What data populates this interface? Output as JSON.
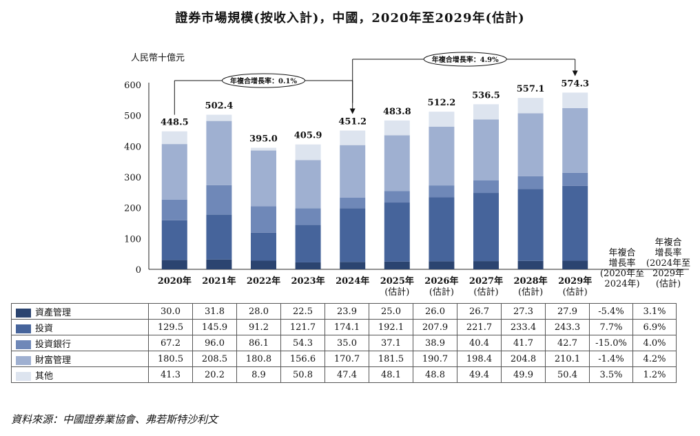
{
  "title": "證券市場規模(按收入計)，中國，2020年至2029年(估計)",
  "source": "資料來源：中國證券業協會、弗若斯特沙利文",
  "chart_data": {
    "type": "bar",
    "stacked": true,
    "unit_label": "人民幣十億元",
    "ylim": [
      0,
      600
    ],
    "yticks": [
      0,
      100,
      200,
      300,
      400,
      500,
      600
    ],
    "categories": [
      {
        "line1": "2020年",
        "line2": ""
      },
      {
        "line1": "2021年",
        "line2": ""
      },
      {
        "line1": "2022年",
        "line2": ""
      },
      {
        "line1": "2023年",
        "line2": ""
      },
      {
        "line1": "2024年",
        "line2": ""
      },
      {
        "line1": "2025年",
        "line2": "(估計)"
      },
      {
        "line1": "2026年",
        "line2": "(估計)"
      },
      {
        "line1": "2027年",
        "line2": "(估計)"
      },
      {
        "line1": "2028年",
        "line2": "(估計)"
      },
      {
        "line1": "2029年",
        "line2": "(估計)"
      }
    ],
    "totals": [
      "448.5",
      "502.4",
      "395.0",
      "405.9",
      "451.2",
      "483.8",
      "512.2",
      "536.5",
      "557.1",
      "574.3"
    ],
    "series": [
      {
        "name": "資產管理",
        "color": "#2b4470",
        "values": [
          30.0,
          31.8,
          28.0,
          22.5,
          23.9,
          25.0,
          26.0,
          26.7,
          27.3,
          27.9
        ],
        "cagr1": "-5.4%",
        "cagr2": "3.1%"
      },
      {
        "name": "投資",
        "color": "#46649b",
        "values": [
          129.5,
          145.9,
          91.2,
          121.7,
          174.1,
          192.1,
          207.9,
          221.7,
          233.4,
          243.3
        ],
        "cagr1": "7.7%",
        "cagr2": "6.9%"
      },
      {
        "name": "投資銀行",
        "color": "#6f88b8",
        "values": [
          67.2,
          96.0,
          86.1,
          54.3,
          35.0,
          37.1,
          38.9,
          40.4,
          41.7,
          42.7
        ],
        "cagr1": "-15.0%",
        "cagr2": "4.0%"
      },
      {
        "name": "財富管理",
        "color": "#9fb0d1",
        "values": [
          180.5,
          208.5,
          180.8,
          156.6,
          170.7,
          181.5,
          190.7,
          198.4,
          204.8,
          210.1
        ],
        "cagr1": "-1.4%",
        "cagr2": "4.2%"
      },
      {
        "name": "其他",
        "color": "#dde4ef",
        "values": [
          41.3,
          20.2,
          8.9,
          50.8,
          47.4,
          48.1,
          48.8,
          49.4,
          49.9,
          50.4
        ],
        "cagr1": "3.5%",
        "cagr2": "1.2%"
      }
    ],
    "cagr_header_1": [
      "年複合",
      "增長率",
      "(2020年至",
      "2024年)"
    ],
    "cagr_header_2": [
      "年複合",
      "增長率",
      "(2024年至",
      "2029年",
      "(估計)"
    ],
    "annotations": [
      {
        "text": "年複合增長率：0.1%",
        "from": "2020年",
        "to": "2024年"
      },
      {
        "text": "年複合增長率：4.9%",
        "from": "2024年",
        "to": "2029年"
      }
    ]
  }
}
